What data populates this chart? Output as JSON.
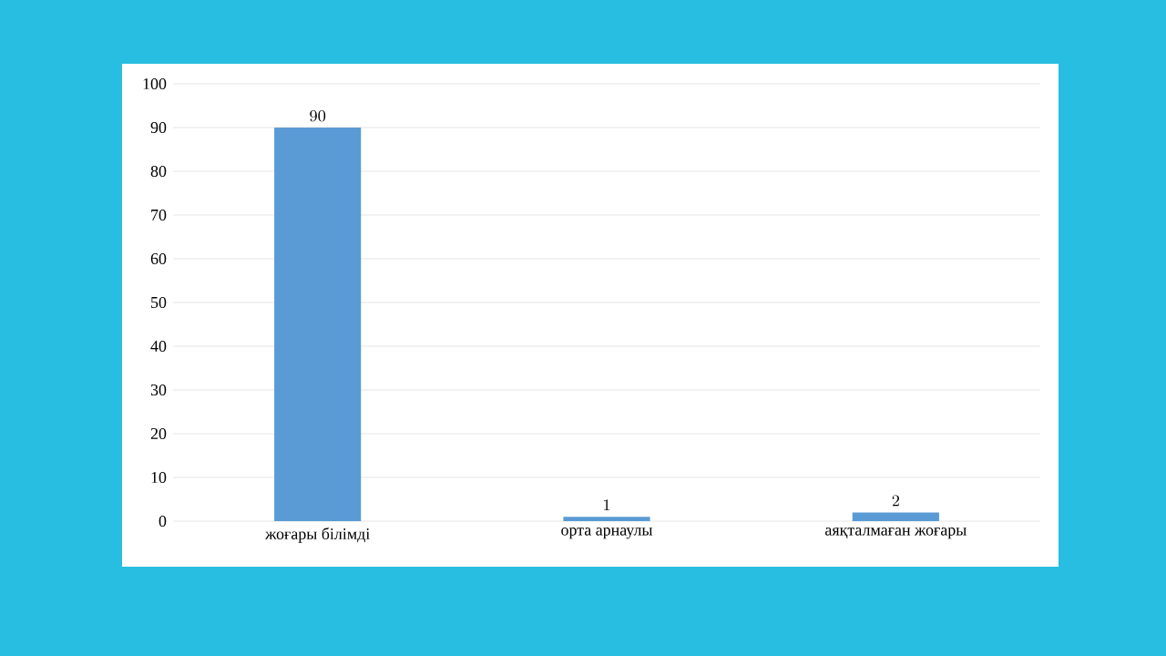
{
  "chart_data": {
    "type": "bar",
    "categories": [
      "жоғары білімді",
      "орта арнаулы",
      "аяқталмаған жоғары"
    ],
    "values": [
      90,
      1,
      2
    ],
    "color": "#5b9bd5",
    "ylim": [
      0,
      100
    ],
    "yticks": [
      0,
      10,
      20,
      30,
      40,
      50,
      60,
      70,
      80,
      90,
      100
    ],
    "grid": "y",
    "data_labels": true
  }
}
